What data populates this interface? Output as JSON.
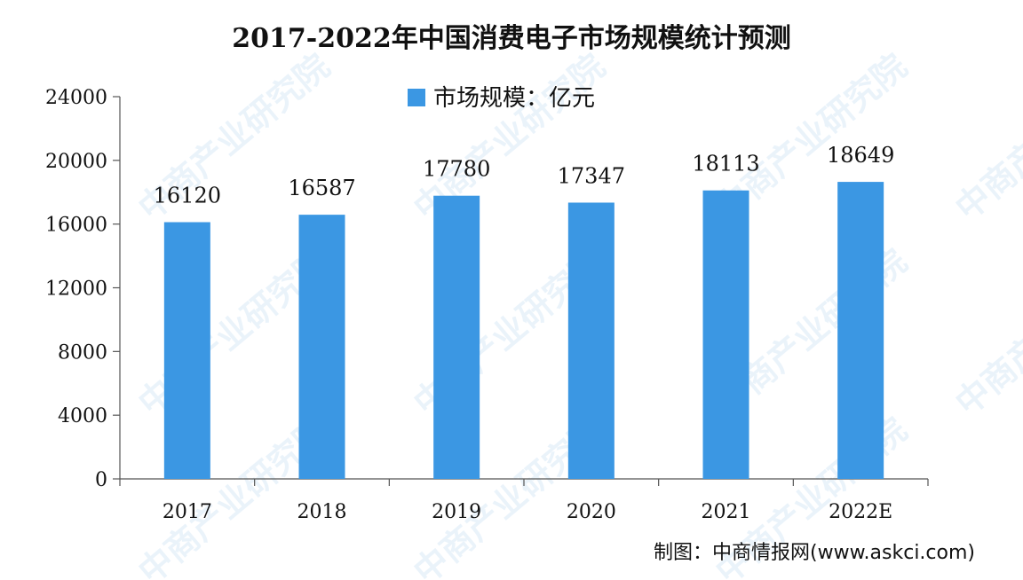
{
  "chart_data": {
    "type": "bar",
    "title": "2017-2022年中国消费电子市场规模统计预测",
    "legend": "市场规模：亿元",
    "categories": [
      "2017",
      "2018",
      "2019",
      "2020",
      "2021",
      "2022E"
    ],
    "values": [
      16120,
      16587,
      17780,
      17347,
      18113,
      18649
    ],
    "yticks": [
      "0",
      "4000",
      "8000",
      "12000",
      "16000",
      "20000",
      "24000"
    ],
    "ylim": [
      0,
      24000
    ],
    "legend_position": "top-center",
    "grid": false,
    "bar_color": "#3b97e3"
  },
  "source": "制图：中商情报网(www.askci.com)",
  "watermark": "中商产业研究院"
}
